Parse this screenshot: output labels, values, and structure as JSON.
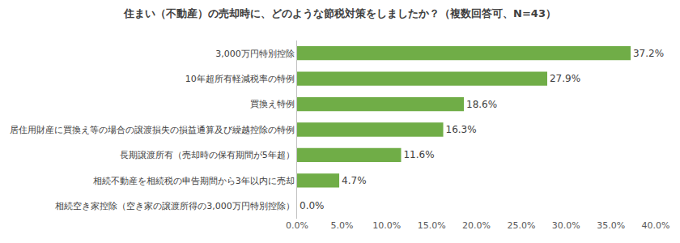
{
  "chart_data": {
    "type": "bar",
    "orientation": "horizontal",
    "title": "住まい（不動産）の売却時に、どのような節税対策をしましたか？（複数回答可、N=43）",
    "categories": [
      "3,000万円特別控除",
      "10年超所有軽減税率の特例",
      "買換え特例",
      "居住用財産に買換え等の場合の譲渡損失の損益通算及び繰越控除の特例",
      "長期譲渡所有（売却時の保有期間が5年超）",
      "相続不動産を相続税の申告期間から3年以内に売却",
      "相続空き家控除（空き家の譲渡所得の3,000万円特別控除）"
    ],
    "values": [
      37.2,
      27.9,
      18.6,
      16.3,
      11.6,
      4.7,
      0.0
    ],
    "value_labels": [
      "37.2%",
      "27.9%",
      "18.6%",
      "16.3%",
      "11.6%",
      "4.7%",
      "0.0%"
    ],
    "data_labels": true,
    "color": "#70ad47",
    "xlim": [
      0,
      40
    ],
    "xticks": [
      {
        "value": 0,
        "label": "0.0%"
      },
      {
        "value": 5,
        "label": "5.0%"
      },
      {
        "value": 10,
        "label": "10.0%"
      },
      {
        "value": 15,
        "label": "15.0%"
      },
      {
        "value": 20,
        "label": "20.0%"
      },
      {
        "value": 25,
        "label": "25.0%"
      },
      {
        "value": 30,
        "label": "30.0%"
      },
      {
        "value": 35,
        "label": "35.0%"
      },
      {
        "value": 40,
        "label": "40.0%"
      }
    ],
    "grid": false
  }
}
